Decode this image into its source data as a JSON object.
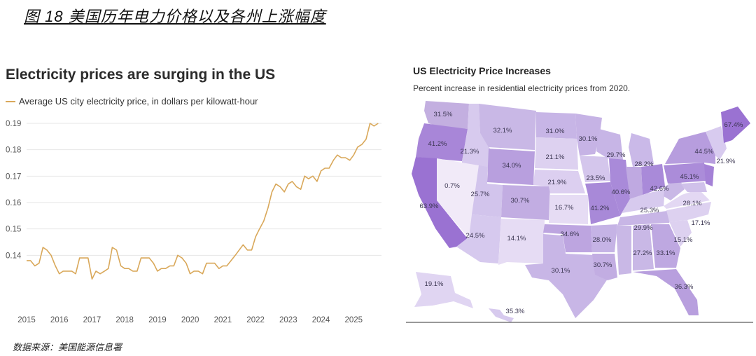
{
  "figure_title": "图 18 美国历年电力价格以及各州上涨幅度",
  "source": "数据来源：美国能源信息署",
  "chart_data": [
    {
      "type": "line",
      "title": "Electricity prices are surging in the US",
      "legend": "Average US city electricity price, in dollars per kilowatt-hour",
      "color": "#d9a85a",
      "xlabel": "",
      "ylabel": "",
      "xlim": [
        2015,
        2025.85
      ],
      "ylim": [
        0.13,
        0.19
      ],
      "yticks": [
        "0.19",
        "0.18",
        "0.17",
        "0.16",
        "0.15",
        "0.14"
      ],
      "ytick_values": [
        0.19,
        0.18,
        0.17,
        0.16,
        0.15,
        0.14
      ],
      "xticks": [
        "2015",
        "2016",
        "2017",
        "2018",
        "2019",
        "2020",
        "2021",
        "2022",
        "2023",
        "2024",
        "2025"
      ],
      "grid": true,
      "series": [
        {
          "name": "Average US city electricity price",
          "x": [
            2015.0,
            2015.12,
            2015.25,
            2015.38,
            2015.5,
            2015.62,
            2015.75,
            2015.88,
            2016.0,
            2016.12,
            2016.25,
            2016.38,
            2016.5,
            2016.62,
            2016.75,
            2016.88,
            2017.0,
            2017.12,
            2017.25,
            2017.38,
            2017.5,
            2017.62,
            2017.75,
            2017.88,
            2018.0,
            2018.12,
            2018.25,
            2018.38,
            2018.5,
            2018.62,
            2018.75,
            2018.88,
            2019.0,
            2019.12,
            2019.25,
            2019.38,
            2019.5,
            2019.62,
            2019.75,
            2019.88,
            2020.0,
            2020.12,
            2020.25,
            2020.38,
            2020.5,
            2020.62,
            2020.75,
            2020.88,
            2021.0,
            2021.12,
            2021.25,
            2021.38,
            2021.5,
            2021.62,
            2021.75,
            2021.88,
            2022.0,
            2022.12,
            2022.25,
            2022.38,
            2022.5,
            2022.62,
            2022.75,
            2022.88,
            2023.0,
            2023.12,
            2023.25,
            2023.38,
            2023.5,
            2023.62,
            2023.75,
            2023.88,
            2024.0,
            2024.12,
            2024.25,
            2024.38,
            2024.5,
            2024.62,
            2024.75,
            2024.88,
            2025.0,
            2025.12,
            2025.25,
            2025.38,
            2025.5,
            2025.62,
            2025.75
          ],
          "values": [
            0.138,
            0.138,
            0.136,
            0.137,
            0.143,
            0.142,
            0.14,
            0.136,
            0.133,
            0.134,
            0.134,
            0.134,
            0.133,
            0.139,
            0.139,
            0.139,
            0.131,
            0.134,
            0.133,
            0.134,
            0.135,
            0.143,
            0.142,
            0.136,
            0.135,
            0.135,
            0.134,
            0.134,
            0.139,
            0.139,
            0.139,
            0.137,
            0.134,
            0.135,
            0.135,
            0.136,
            0.136,
            0.14,
            0.139,
            0.137,
            0.133,
            0.134,
            0.134,
            0.133,
            0.137,
            0.137,
            0.137,
            0.135,
            0.136,
            0.136,
            0.138,
            0.14,
            0.142,
            0.144,
            0.142,
            0.142,
            0.147,
            0.15,
            0.153,
            0.158,
            0.164,
            0.167,
            0.166,
            0.164,
            0.167,
            0.168,
            0.166,
            0.165,
            0.17,
            0.169,
            0.17,
            0.168,
            0.172,
            0.173,
            0.173,
            0.176,
            0.178,
            0.177,
            0.177,
            0.176,
            0.178,
            0.181,
            0.182,
            0.184,
            0.19,
            0.189,
            0.19
          ]
        }
      ]
    },
    {
      "type": "map",
      "title": "US Electricity Price Increases",
      "subtitle": "Percent increase in residential electricity prices from 2020.",
      "labels": [
        {
          "state": "WA",
          "value": "31.5%"
        },
        {
          "state": "OR",
          "value": "41.2%"
        },
        {
          "state": "ID",
          "value": "21.3%"
        },
        {
          "state": "MT",
          "value": "32.1%"
        },
        {
          "state": "ND",
          "value": "31.0%"
        },
        {
          "state": "MN",
          "value": "30.1%"
        },
        {
          "state": "WY",
          "value": "34.0%"
        },
        {
          "state": "SD",
          "value": "21.1%"
        },
        {
          "state": "WI",
          "value": "29.7%"
        },
        {
          "state": "MI",
          "value": "28.2%"
        },
        {
          "state": "ME",
          "value": "67.4%"
        },
        {
          "state": "NY",
          "value": "44.5%"
        },
        {
          "state": "MA",
          "value": "21.9%"
        },
        {
          "state": "PA",
          "value": "45.1%"
        },
        {
          "state": "NV",
          "value": "0.7%"
        },
        {
          "state": "UT",
          "value": "25.7%"
        },
        {
          "state": "CO",
          "value": "30.7%"
        },
        {
          "state": "NE",
          "value": "21.9%"
        },
        {
          "state": "IA",
          "value": "23.5%"
        },
        {
          "state": "IL",
          "value": "40.6%"
        },
        {
          "state": "OH",
          "value": "42.6%"
        },
        {
          "state": "CA",
          "value": "63.9%"
        },
        {
          "state": "KS",
          "value": "16.7%"
        },
        {
          "state": "MO",
          "value": "41.2%"
        },
        {
          "state": "KY",
          "value": "25.3%"
        },
        {
          "state": "MD",
          "value": "28.1%"
        },
        {
          "state": "VA",
          "value": "17.1%"
        },
        {
          "state": "AZ",
          "value": "24.5%"
        },
        {
          "state": "NM",
          "value": "14.1%"
        },
        {
          "state": "OK",
          "value": "34.6%"
        },
        {
          "state": "AR",
          "value": "28.0%"
        },
        {
          "state": "TN",
          "value": "29.9%"
        },
        {
          "state": "NC",
          "value": "15.1%"
        },
        {
          "state": "TX",
          "value": "30.1%"
        },
        {
          "state": "LA",
          "value": "30.7%"
        },
        {
          "state": "MS",
          "value": "27.2%"
        },
        {
          "state": "GA",
          "value": "33.1%"
        },
        {
          "state": "AK",
          "value": "19.1%"
        },
        {
          "state": "FL",
          "value": "36.3%"
        },
        {
          "state": "HI",
          "value": "35.3%"
        }
      ]
    }
  ]
}
